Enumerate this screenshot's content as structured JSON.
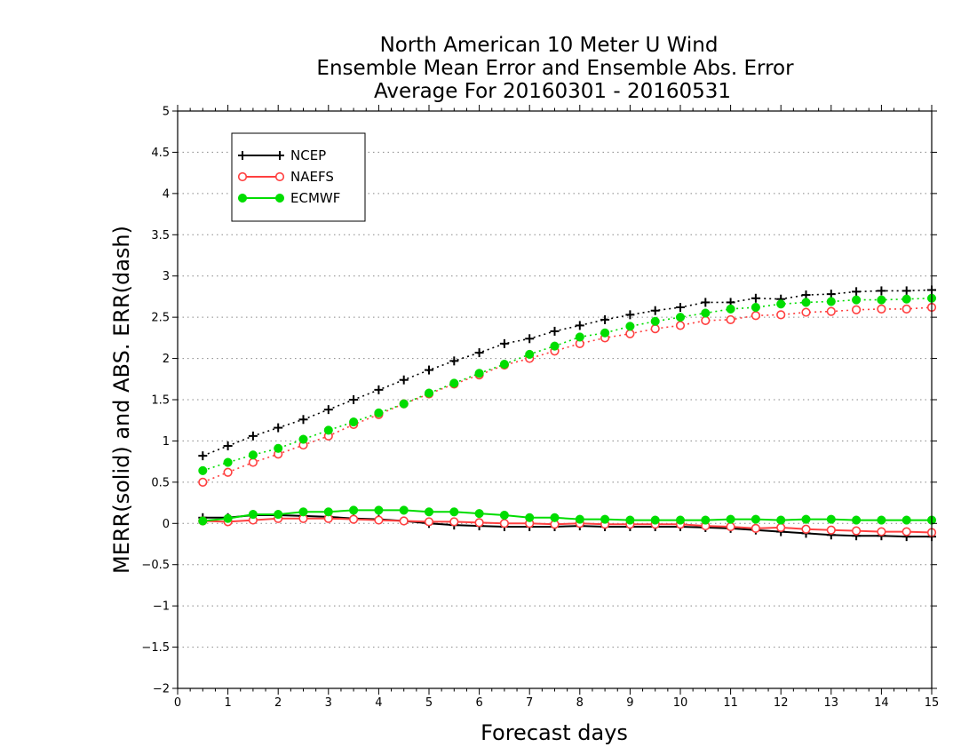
{
  "chart_data": {
    "type": "line",
    "title_lines": [
      "North American 10 Meter U Wind",
      "Ensemble Mean Error and Ensemble Abs. Error",
      "Average For 20160301 - 20160531"
    ],
    "xlabel": "Forecast days",
    "ylabel": "MERR(solid) and ABS. ERR(dash)",
    "xlim": [
      0,
      15
    ],
    "ylim": [
      -2,
      5
    ],
    "x_ticks": [
      "0",
      "1",
      "2",
      "3",
      "4",
      "5",
      "6",
      "7",
      "8",
      "9",
      "10",
      "11",
      "12",
      "13",
      "14",
      "15"
    ],
    "y_ticks": [
      "-2",
      "-1.5",
      "-1",
      "-0.5",
      "0",
      "0.5",
      "1",
      "1.5",
      "2",
      "2.5",
      "3",
      "3.5",
      "4",
      "4.5",
      "5"
    ],
    "grid": "horizontal-dotted",
    "legend_position": "top-left",
    "x": [
      0.5,
      1,
      1.5,
      2,
      2.5,
      3,
      3.5,
      4,
      4.5,
      5,
      5.5,
      6,
      6.5,
      7,
      7.5,
      8,
      8.5,
      9,
      9.5,
      10,
      10.5,
      11,
      11.5,
      12,
      12.5,
      13,
      13.5,
      14,
      14.5,
      15
    ],
    "series": [
      {
        "name": "NCEP",
        "color": "#000000",
        "marker": "plus",
        "merr": [
          0.07,
          0.07,
          0.1,
          0.1,
          0.09,
          0.08,
          0.06,
          0.05,
          0.03,
          0.0,
          -0.02,
          -0.03,
          -0.04,
          -0.04,
          -0.04,
          -0.03,
          -0.04,
          -0.04,
          -0.04,
          -0.04,
          -0.05,
          -0.06,
          -0.08,
          -0.1,
          -0.12,
          -0.14,
          -0.15,
          -0.15,
          -0.16,
          -0.16
        ],
        "abs_err": [
          0.82,
          0.94,
          1.06,
          1.16,
          1.26,
          1.38,
          1.5,
          1.62,
          1.74,
          1.86,
          1.97,
          2.07,
          2.18,
          2.24,
          2.33,
          2.4,
          2.47,
          2.53,
          2.58,
          2.62,
          2.68,
          2.68,
          2.73,
          2.72,
          2.77,
          2.78,
          2.81,
          2.82,
          2.82,
          2.83
        ]
      },
      {
        "name": "NAEFS",
        "color": "#ff4040",
        "marker": "open-circle",
        "merr": [
          0.03,
          0.02,
          0.04,
          0.06,
          0.06,
          0.06,
          0.05,
          0.04,
          0.03,
          0.02,
          0.02,
          0.01,
          0.0,
          0.0,
          -0.01,
          0.0,
          -0.01,
          -0.01,
          -0.01,
          -0.01,
          -0.03,
          -0.04,
          -0.06,
          -0.05,
          -0.07,
          -0.08,
          -0.09,
          -0.1,
          -0.1,
          -0.11
        ],
        "abs_err": [
          0.5,
          0.62,
          0.74,
          0.84,
          0.95,
          1.06,
          1.2,
          1.32,
          1.45,
          1.57,
          1.69,
          1.8,
          1.92,
          2.0,
          2.09,
          2.18,
          2.25,
          2.3,
          2.36,
          2.4,
          2.46,
          2.47,
          2.52,
          2.53,
          2.56,
          2.57,
          2.59,
          2.6,
          2.6,
          2.62
        ]
      },
      {
        "name": "ECMWF",
        "color": "#00dd00",
        "marker": "filled-circle",
        "merr": [
          0.03,
          0.06,
          0.11,
          0.11,
          0.14,
          0.14,
          0.16,
          0.16,
          0.16,
          0.14,
          0.14,
          0.12,
          0.1,
          0.07,
          0.07,
          0.05,
          0.05,
          0.04,
          0.04,
          0.04,
          0.04,
          0.05,
          0.05,
          0.04,
          0.05,
          0.05,
          0.04,
          0.04,
          0.04,
          0.04
        ],
        "abs_err": [
          0.64,
          0.74,
          0.83,
          0.91,
          1.02,
          1.13,
          1.23,
          1.34,
          1.45,
          1.58,
          1.7,
          1.82,
          1.93,
          2.05,
          2.15,
          2.26,
          2.31,
          2.39,
          2.45,
          2.5,
          2.55,
          2.6,
          2.62,
          2.66,
          2.68,
          2.69,
          2.71,
          2.71,
          2.72,
          2.73
        ]
      }
    ]
  }
}
